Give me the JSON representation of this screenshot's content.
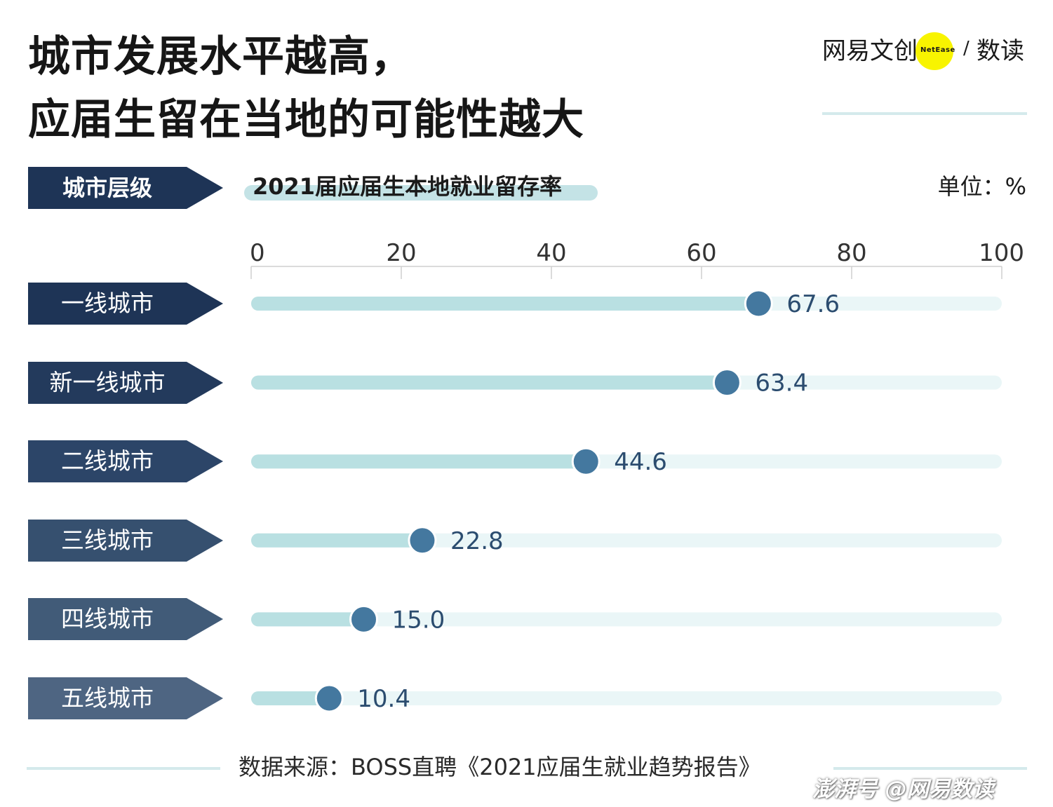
{
  "title": {
    "line1": "城市发展水平越高，",
    "line2": "应届生留在当地的可能性越大"
  },
  "brand": {
    "wangyi_text": "网易文创",
    "netease_text": "NetEase",
    "slash": "/",
    "shudu_text": "数读"
  },
  "header": {
    "category_label": "城市层级",
    "metric_label": "2021届应届生本地就业留存率",
    "unit_label": "单位：%"
  },
  "colors": {
    "accent_dot": "#44789f",
    "track_fill": "#b9e0e2",
    "track_bg": "#eaf6f7",
    "tag_colors": [
      "#1e3456",
      "#233a5c",
      "#2c4568",
      "#36506f",
      "#415b78",
      "#4e6582"
    ]
  },
  "chart_data": {
    "type": "bar",
    "categories": [
      "一线城市",
      "新一线城市",
      "二线城市",
      "三线城市",
      "四线城市",
      "五线城市"
    ],
    "values": [
      67.6,
      63.4,
      44.6,
      22.8,
      15.0,
      10.4
    ],
    "value_labels": [
      "67.6",
      "63.4",
      "44.6",
      "22.8",
      "15.0",
      "10.4"
    ],
    "x_ticks": [
      "0",
      "20",
      "40",
      "60",
      "80",
      "100"
    ],
    "xlim": [
      0,
      100
    ],
    "orientation": "horizontal",
    "title": "2021届应届生本地就业留存率",
    "unit": "单位：%",
    "grid": false
  },
  "footer": {
    "source": "数据来源：BOSS直聘《2021应届生就业趋势报告》",
    "watermark": "澎湃号 @网易数读"
  }
}
